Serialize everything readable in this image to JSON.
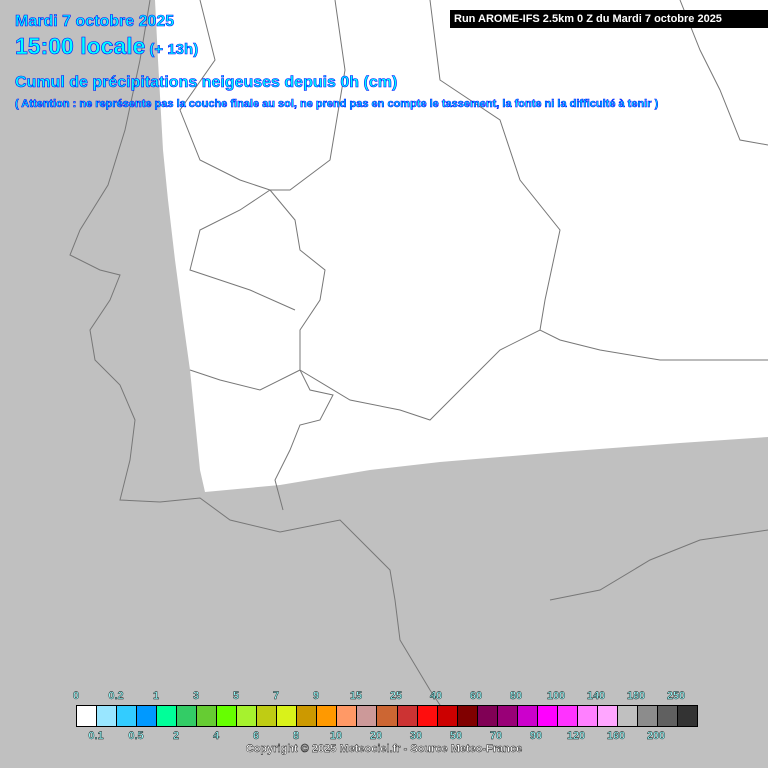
{
  "header": {
    "date": "Mardi 7 octobre 2025",
    "time": "15:00 locale",
    "offset": "(+ 13h)",
    "title": "Cumul de précipitations neigeuses depuis 0h (cm)",
    "note": "( Attention : ne représente pas la couche finale au sol, ne prend pas en compte le tassement, la fonte ni la difficulté à tenir )",
    "run": "Run AROME-IFS 2.5km 0 Z du Mardi 7 octobre 2025"
  },
  "legend": {
    "colors": [
      "#ffffff",
      "#99e6ff",
      "#33ccff",
      "#0099ff",
      "#00ff99",
      "#33cc66",
      "#66cc33",
      "#66ff00",
      "#a6f22e",
      "#bfcc14",
      "#d9f21a",
      "#cc9900",
      "#ff9900",
      "#ff9966",
      "#cc9999",
      "#cc6633",
      "#cc3333",
      "#ff0d0d",
      "#cc0000",
      "#800000",
      "#800055",
      "#990077",
      "#cc00cc",
      "#ff00ff",
      "#ff33ff",
      "#ff80ff",
      "#ffa6ff",
      "#c0c0c0",
      "#8c8c8c",
      "#606060",
      "#333333"
    ],
    "top_labels": [
      "0",
      "0.2",
      "1",
      "3",
      "5",
      "7",
      "9",
      "15",
      "25",
      "40",
      "60",
      "80",
      "100",
      "140",
      "180",
      "250"
    ],
    "bottom_labels": [
      "0.1",
      "0.5",
      "2",
      "4",
      "6",
      "8",
      "10",
      "20",
      "30",
      "50",
      "70",
      "90",
      "120",
      "160",
      "200"
    ],
    "unit": "cm"
  },
  "copyright": "Copyright © 2025 Meteociel.fr - Source Meteo-France",
  "map": {
    "domain_color": "#ffffff",
    "outside_color": "#c0c0c0",
    "border_color": "#777777"
  }
}
